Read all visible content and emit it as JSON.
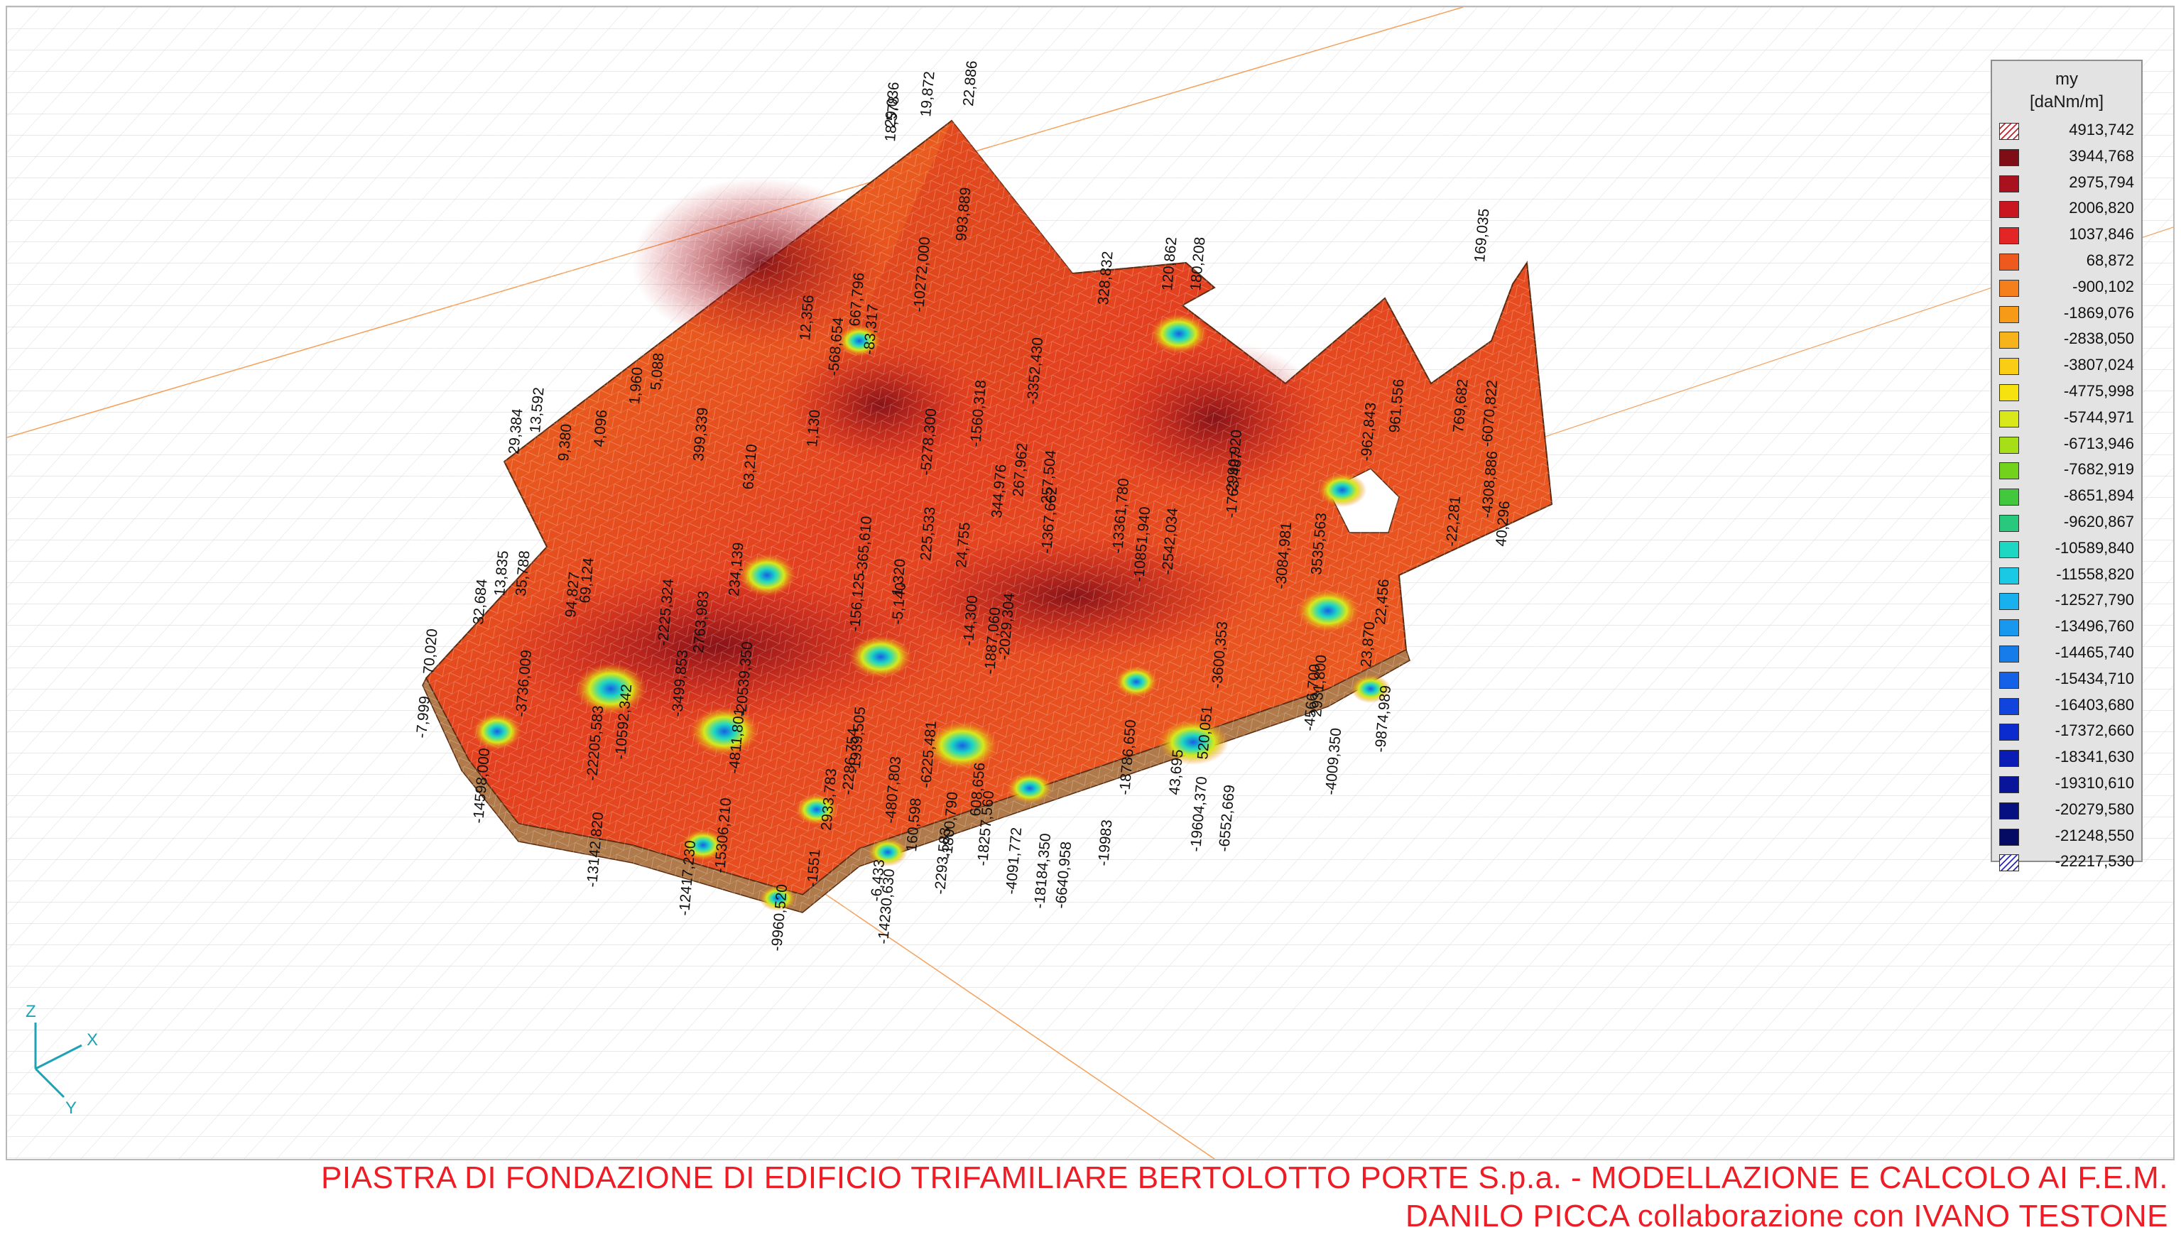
{
  "legend": {
    "title_line1": "my",
    "title_line2": "[daNm/m]",
    "entries": [
      {
        "value": "4913,742",
        "color": "#6e0a12",
        "hatch": true
      },
      {
        "value": "3944,768",
        "color": "#7e0d16"
      },
      {
        "value": "2975,794",
        "color": "#a8111d"
      },
      {
        "value": "2006,820",
        "color": "#c8151f"
      },
      {
        "value": "1037,846",
        "color": "#e32525"
      },
      {
        "value": "68,872",
        "color": "#ee5a1e"
      },
      {
        "value": "-900,102",
        "color": "#f5801b"
      },
      {
        "value": "-1869,076",
        "color": "#f79a17"
      },
      {
        "value": "-2838,050",
        "color": "#f7b31a"
      },
      {
        "value": "-3807,024",
        "color": "#f8cd14"
      },
      {
        "value": "-4775,998",
        "color": "#f5e20e"
      },
      {
        "value": "-5744,971",
        "color": "#d8e81a"
      },
      {
        "value": "-6713,946",
        "color": "#a6de18"
      },
      {
        "value": "-7682,919",
        "color": "#72d21c"
      },
      {
        "value": "-8651,894",
        "color": "#42c83c"
      },
      {
        "value": "-9620,867",
        "color": "#28c97c"
      },
      {
        "value": "-10589,840",
        "color": "#1ed7c2"
      },
      {
        "value": "-11558,820",
        "color": "#1ac9e4"
      },
      {
        "value": "-12527,790",
        "color": "#19b0ee"
      },
      {
        "value": "-13496,760",
        "color": "#1898ee"
      },
      {
        "value": "-14465,740",
        "color": "#167cea"
      },
      {
        "value": "-15434,710",
        "color": "#1460e6"
      },
      {
        "value": "-16403,680",
        "color": "#1044dd"
      },
      {
        "value": "-17372,660",
        "color": "#0c2bcf"
      },
      {
        "value": "-18341,630",
        "color": "#0a1cb6"
      },
      {
        "value": "-19310,610",
        "color": "#08159b"
      },
      {
        "value": "-20279,580",
        "color": "#061080"
      },
      {
        "value": "-21248,550",
        "color": "#050b62"
      },
      {
        "value": "-22217,530",
        "color": "#2a2ac0",
        "hatch": true
      }
    ]
  },
  "labels": [
    "22,886",
    "19,872",
    "29,036",
    "18,578",
    "993,889",
    "120,862",
    "180,208",
    "328,832",
    "169,035",
    "29,384",
    "13,592",
    "9,380",
    "4,096",
    "1,960",
    "5,088",
    "399,339",
    "63,210",
    "1,130",
    "-10272,000",
    "12,356",
    "667,796",
    "-83,317",
    "-568,654",
    "-3352,430",
    "-1560,318",
    "-5278,300",
    "-13361,780",
    "-10851,940",
    "-2542,034",
    "-2990,920",
    "-1763,487",
    "961,556",
    "-962,843",
    "769,682",
    "-6070,822",
    "-4308,886",
    "40,296",
    "32,684",
    "13,835",
    "35,788",
    "94,827",
    "69,124",
    "-2225,324",
    "2763,983",
    "234,139",
    "70,020",
    "-7,999",
    "-3736,009",
    "-20539,350",
    "-14598,000",
    "-22205,583",
    "-10592,342",
    "-3499,853",
    "-13142,820",
    "-12417,230",
    "-15306,210",
    "-9960,520",
    "-1551",
    "2933,783",
    "-6,433",
    "-14230,630",
    "160,598",
    "-2293,583",
    "-1800,790",
    "-18257,560",
    "-4091,772",
    "-18184,350",
    "-6640,958",
    "-19983",
    "-18786,650",
    "43,695",
    "520,051",
    "-19604,370",
    "-6552,669",
    "-4566,700",
    "-4009,350",
    "-9874,989",
    "23,870",
    "-3600,353",
    "-3084,981",
    "-1367,662",
    "3535,563",
    "22,456",
    "2931,800",
    "-22,281",
    "344,976",
    "24,755",
    "-365,610",
    "1,320",
    "-5,140",
    "267,962",
    "257,504",
    "-156,125",
    "225,533",
    "-4811,801",
    "-1939,505",
    "-2286,754",
    "-4807,803",
    "-6225,481",
    "608,656",
    "-2029,304",
    "-1887,060",
    "-14,300"
  ],
  "caption": {
    "line1": "PIASTRA DI FONDAZIONE DI EDIFICIO TRIFAMILIARE BERTOLOTTO PORTE S.p.a. - MODELLAZIONE E CALCOLO AI F.E.M.",
    "line2": "DANILO PICCA collaborazione con IVANO TESTONE"
  },
  "axes": {
    "z": "Z",
    "x": "X",
    "y": "Y"
  }
}
